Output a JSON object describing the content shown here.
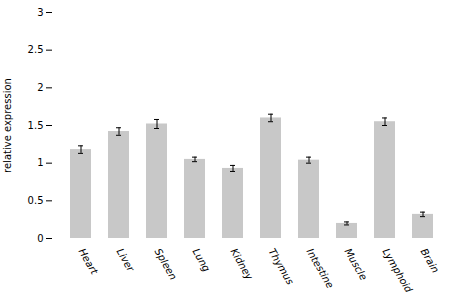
{
  "chart_data": {
    "type": "bar",
    "categories": [
      "Heart",
      "Liver",
      "Spleen",
      "Lung",
      "Kidney",
      "Thymus",
      "Intestine",
      "Muscle",
      "Lymphoid",
      "Brain"
    ],
    "values": [
      1.18,
      1.42,
      1.52,
      1.05,
      0.93,
      1.6,
      1.04,
      0.2,
      1.55,
      0.32
    ],
    "errors": [
      0.05,
      0.05,
      0.06,
      0.03,
      0.04,
      0.05,
      0.04,
      0.02,
      0.05,
      0.03
    ],
    "color": "#c8c8c8",
    "ylabel": "relative expression",
    "ylim": [
      0,
      3
    ],
    "yticks": [
      0,
      0.5,
      1,
      1.5,
      2,
      2.5,
      3
    ],
    "grid": false
  }
}
